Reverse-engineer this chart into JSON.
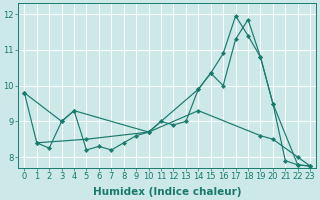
{
  "xlabel": "Humidex (Indice chaleur)",
  "xlim": [
    -0.5,
    23.5
  ],
  "ylim": [
    7.7,
    12.3
  ],
  "bg_color": "#cce8e8",
  "grid_color": "#ffffff",
  "line_color": "#1a7a6e",
  "series": [
    {
      "x": [
        0,
        1,
        2,
        3,
        4,
        5,
        6,
        7,
        8,
        9,
        10,
        11,
        12,
        13,
        14,
        15,
        16,
        17,
        18,
        19,
        20,
        21,
        22,
        23
      ],
      "y": [
        9.8,
        8.4,
        8.25,
        9.0,
        9.3,
        8.2,
        8.3,
        8.2,
        8.4,
        8.6,
        8.7,
        9.0,
        8.9,
        9.0,
        9.9,
        10.35,
        10.0,
        11.3,
        11.85,
        10.8,
        9.5,
        7.9,
        7.78,
        7.75
      ]
    },
    {
      "x": [
        1,
        5,
        10,
        14,
        15,
        16,
        17,
        18,
        19,
        20,
        22,
        23
      ],
      "y": [
        8.4,
        8.5,
        8.7,
        9.9,
        10.35,
        10.9,
        11.95,
        11.4,
        10.8,
        9.5,
        7.78,
        7.75
      ]
    },
    {
      "x": [
        0,
        3,
        4,
        10,
        14,
        19,
        20,
        22,
        23
      ],
      "y": [
        9.8,
        9.0,
        9.3,
        8.7,
        9.3,
        8.6,
        8.5,
        8.0,
        7.75
      ]
    }
  ],
  "xticks": [
    0,
    1,
    2,
    3,
    4,
    5,
    6,
    7,
    8,
    9,
    10,
    11,
    12,
    13,
    14,
    15,
    16,
    17,
    18,
    19,
    20,
    21,
    22,
    23
  ],
  "yticks": [
    8,
    9,
    10,
    11,
    12
  ],
  "tick_fontsize": 6,
  "label_fontsize": 7.5
}
